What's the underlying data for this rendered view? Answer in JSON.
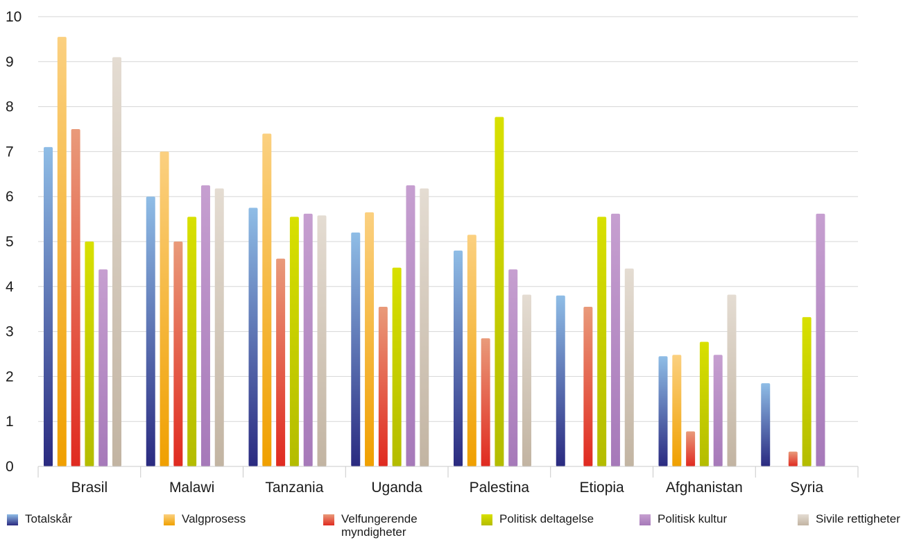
{
  "chart_data": {
    "type": "bar",
    "categories": [
      "Brasil",
      "Malawi",
      "Tanzania",
      "Uganda",
      "Palestina",
      "Etiopia",
      "Afghanistan",
      "Syria"
    ],
    "ylim": [
      0,
      10
    ],
    "yticks": [
      "0",
      "1",
      "2",
      "3",
      "4",
      "5",
      "6",
      "7",
      "8",
      "9",
      "10"
    ],
    "grid": true,
    "legend_position": "bottom",
    "series": [
      {
        "name": "Totalskår",
        "color_top": "#8fbde6",
        "color_bottom": "#2a2a80",
        "values": [
          7.1,
          6.0,
          5.75,
          5.2,
          4.8,
          3.8,
          2.45,
          1.85
        ]
      },
      {
        "name": "Valgprosess",
        "color_top": "#fbd080",
        "color_bottom": "#f0a000",
        "values": [
          9.55,
          7.0,
          7.4,
          5.65,
          5.15,
          null,
          2.48,
          null
        ]
      },
      {
        "name": "Velfungerende myndigheter",
        "color_top": "#e99a7a",
        "color_bottom": "#e02a20",
        "values": [
          7.5,
          5.0,
          4.62,
          3.55,
          2.85,
          3.55,
          0.78,
          0.33
        ]
      },
      {
        "name": "Politisk deltagelse",
        "color_top": "#d8e000",
        "color_bottom": "#b4bc00",
        "values": [
          5.0,
          5.55,
          5.55,
          4.42,
          7.77,
          5.55,
          2.77,
          3.32
        ]
      },
      {
        "name": "Politisk kultur",
        "color_top": "#c69fd0",
        "color_bottom": "#a679b9",
        "values": [
          4.38,
          6.25,
          5.62,
          6.25,
          4.38,
          5.62,
          2.48,
          5.62
        ]
      },
      {
        "name": "Sivile rettigheter",
        "color_top": "#e4dcd2",
        "color_bottom": "#c2b4a2",
        "values": [
          9.1,
          6.18,
          5.58,
          6.18,
          3.82,
          4.4,
          3.82,
          null
        ]
      }
    ]
  },
  "legend": [
    {
      "line1": "Totalskår",
      "line2": ""
    },
    {
      "line1": "Valgprosess",
      "line2": ""
    },
    {
      "line1": "Velfungerende",
      "line2": "myndigheter"
    },
    {
      "line1": "Politisk deltagelse",
      "line2": ""
    },
    {
      "line1": "Politisk kultur",
      "line2": ""
    },
    {
      "line1": "Sivile rettigheter",
      "line2": ""
    }
  ]
}
